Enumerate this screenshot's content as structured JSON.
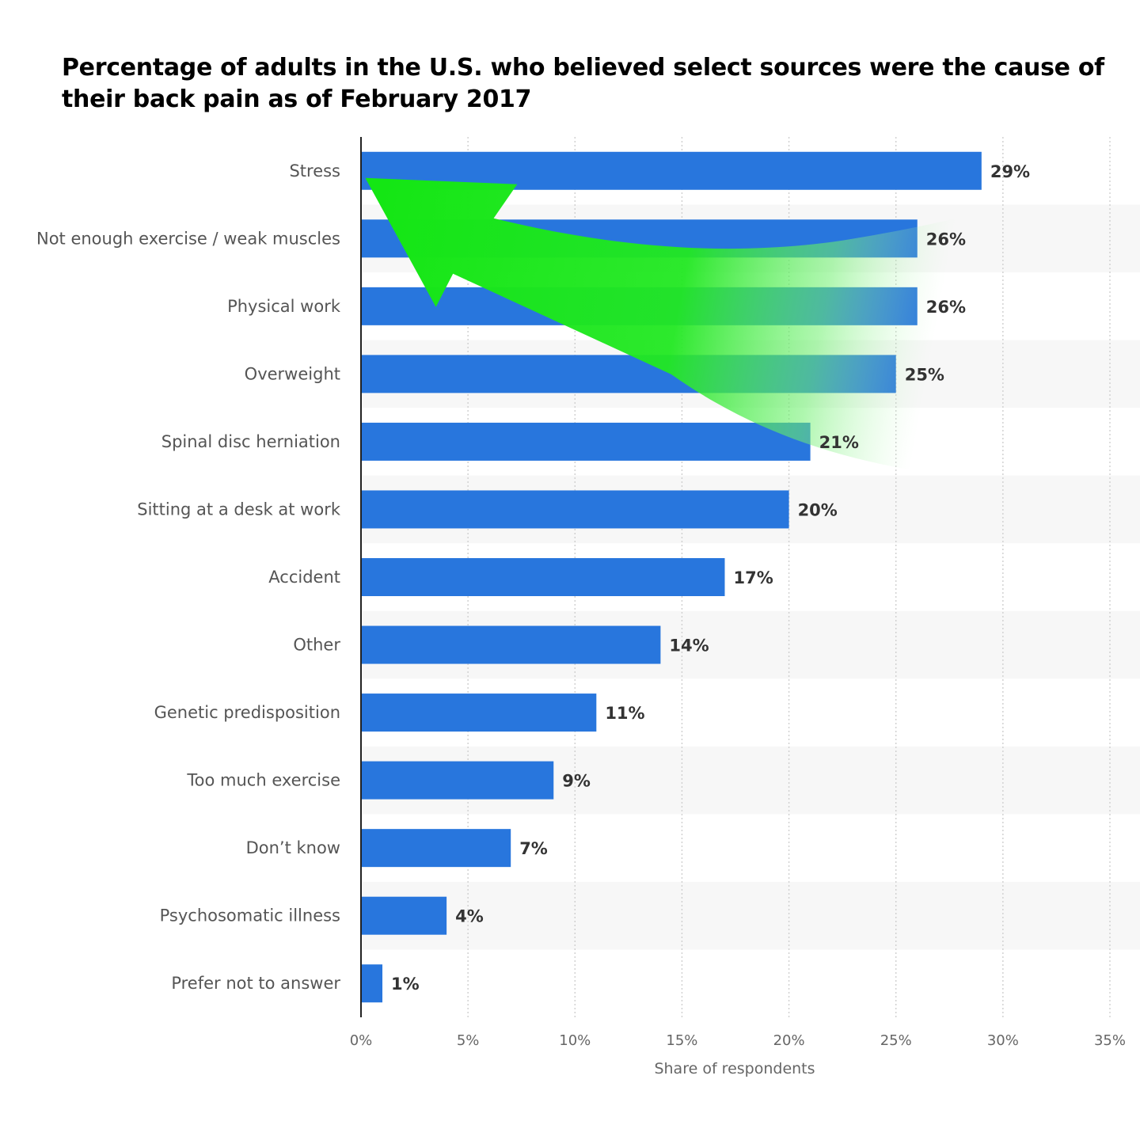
{
  "chart_data": {
    "type": "bar",
    "orientation": "horizontal",
    "title": "Percentage of adults in the U.S. who believed select sources were the cause of their back pain as of February 2017",
    "categories": [
      "Stress",
      "Not enough exercise / weak muscles",
      "Physical work",
      "Overweight",
      "Spinal disc herniation",
      "Sitting at a desk at work",
      "Accident",
      "Other",
      "Genetic predisposition",
      "Too much exercise",
      "Don’t know",
      "Psychosomatic illness",
      "Prefer not to answer"
    ],
    "values": [
      29,
      26,
      26,
      25,
      21,
      20,
      17,
      14,
      11,
      9,
      7,
      4,
      1
    ],
    "value_labels": [
      "29%",
      "26%",
      "26%",
      "25%",
      "21%",
      "20%",
      "17%",
      "14%",
      "11%",
      "9%",
      "7%",
      "4%",
      "1%"
    ],
    "xlabel": "Share of respondents",
    "ylabel": "",
    "xlim": [
      0,
      35
    ],
    "ticks": [
      0,
      5,
      10,
      15,
      20,
      25,
      30,
      35
    ],
    "tick_labels": [
      "0%",
      "5%",
      "10%",
      "15%",
      "20%",
      "25%",
      "30%",
      "35%"
    ],
    "grid": true,
    "bar_color": "#2876dd",
    "band_color": "#f7f7f7",
    "annotation": {
      "type": "arrow",
      "color": "#1ee61e",
      "from_category": "Spinal disc herniation",
      "to_category": "Stress"
    }
  }
}
